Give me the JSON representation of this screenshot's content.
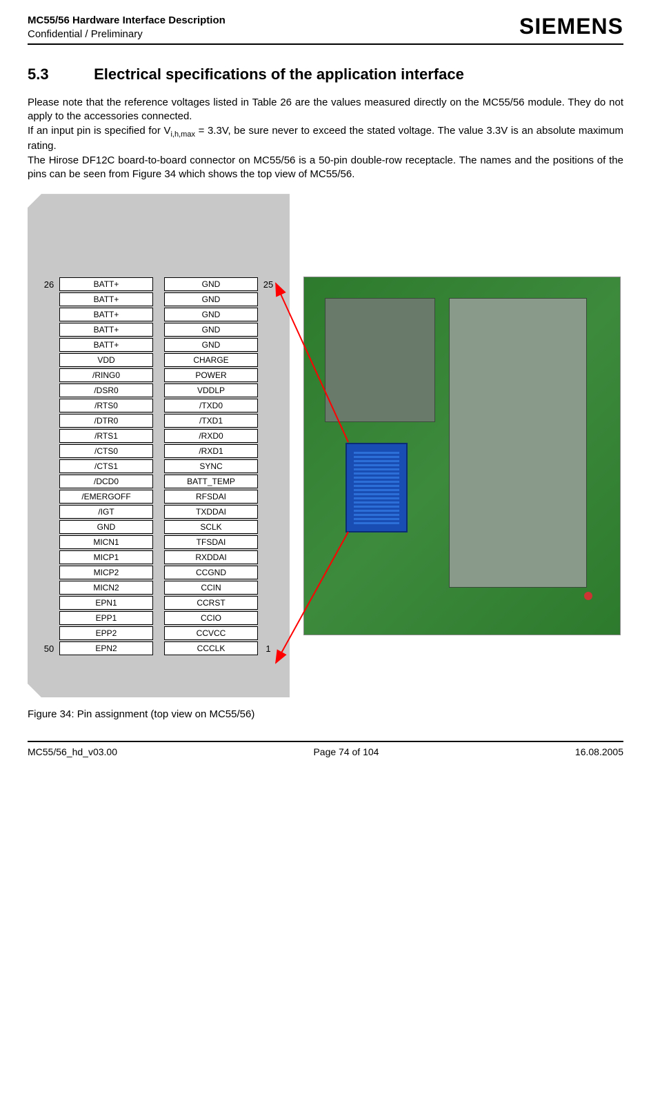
{
  "header": {
    "title": "MC55/56 Hardware Interface Description",
    "subtitle": "Confidential / Preliminary",
    "logo": "SIEMENS"
  },
  "section": {
    "number": "5.3",
    "title": "Electrical specifications of the application interface"
  },
  "paragraphs": {
    "p1": "Please note that the reference voltages listed in Table 26 are the values measured directly on the MC55/56 module. They do not apply to the accessories connected.",
    "p2_pre": "If an input pin is specified for V",
    "p2_sub": "i,h,max",
    "p2_post": " = 3.3V, be sure never to exceed the stated voltage. The value 3.3V is an absolute maximum rating.",
    "p3": "The Hirose DF12C board-to-board connector on MC55/56 is a 50-pin double-row receptacle. The names and the positions of the pins can be seen from Figure 34 which shows the top view of MC55/56."
  },
  "pins": {
    "top_left_num": "26",
    "top_right_num": "25",
    "bottom_left_num": "50",
    "bottom_right_num": "1",
    "rows": [
      {
        "left": "BATT+",
        "right": "GND"
      },
      {
        "left": "BATT+",
        "right": "GND"
      },
      {
        "left": "BATT+",
        "right": "GND"
      },
      {
        "left": "BATT+",
        "right": "GND"
      },
      {
        "left": "BATT+",
        "right": "GND"
      },
      {
        "left": "VDD",
        "right": "CHARGE"
      },
      {
        "left": "/RING0",
        "right": "POWER"
      },
      {
        "left": "/DSR0",
        "right": "VDDLP"
      },
      {
        "left": "/RTS0",
        "right": "/TXD0"
      },
      {
        "left": "/DTR0",
        "right": "/TXD1"
      },
      {
        "left": "/RTS1",
        "right": "/RXD0"
      },
      {
        "left": "/CTS0",
        "right": "/RXD1"
      },
      {
        "left": "/CTS1",
        "right": "SYNC"
      },
      {
        "left": "/DCD0",
        "right": "BATT_TEMP"
      },
      {
        "left": "/EMERGOFF",
        "right": "RFSDAI"
      },
      {
        "left": "/IGT",
        "right": "TXDDAI"
      },
      {
        "left": "GND",
        "right": "SCLK"
      },
      {
        "left": "MICN1",
        "right": "TFSDAI"
      },
      {
        "left": "MICP1",
        "right": "RXDDAI"
      },
      {
        "left": "MICP2",
        "right": "CCGND"
      },
      {
        "left": "MICN2",
        "right": "CCIN"
      },
      {
        "left": "EPN1",
        "right": "CCRST"
      },
      {
        "left": "EPP1",
        "right": "CCIO"
      },
      {
        "left": "EPP2",
        "right": "CCVCC"
      },
      {
        "left": "EPN2",
        "right": "CCCLK"
      }
    ]
  },
  "figure_caption": "Figure 34: Pin assignment (top view on MC55/56)",
  "footer": {
    "left": "MC55/56_hd_v03.00",
    "center": "Page 74 of 104",
    "right": "16.08.2005"
  },
  "colors": {
    "pin_bg": "#c8c8c8",
    "pin_box_bg": "#ffffff",
    "pin_box_border": "#000000",
    "pcb_green": "#3d8a3d",
    "connector_blue": "#1a4db3",
    "arrow_red": "#ff0000"
  }
}
